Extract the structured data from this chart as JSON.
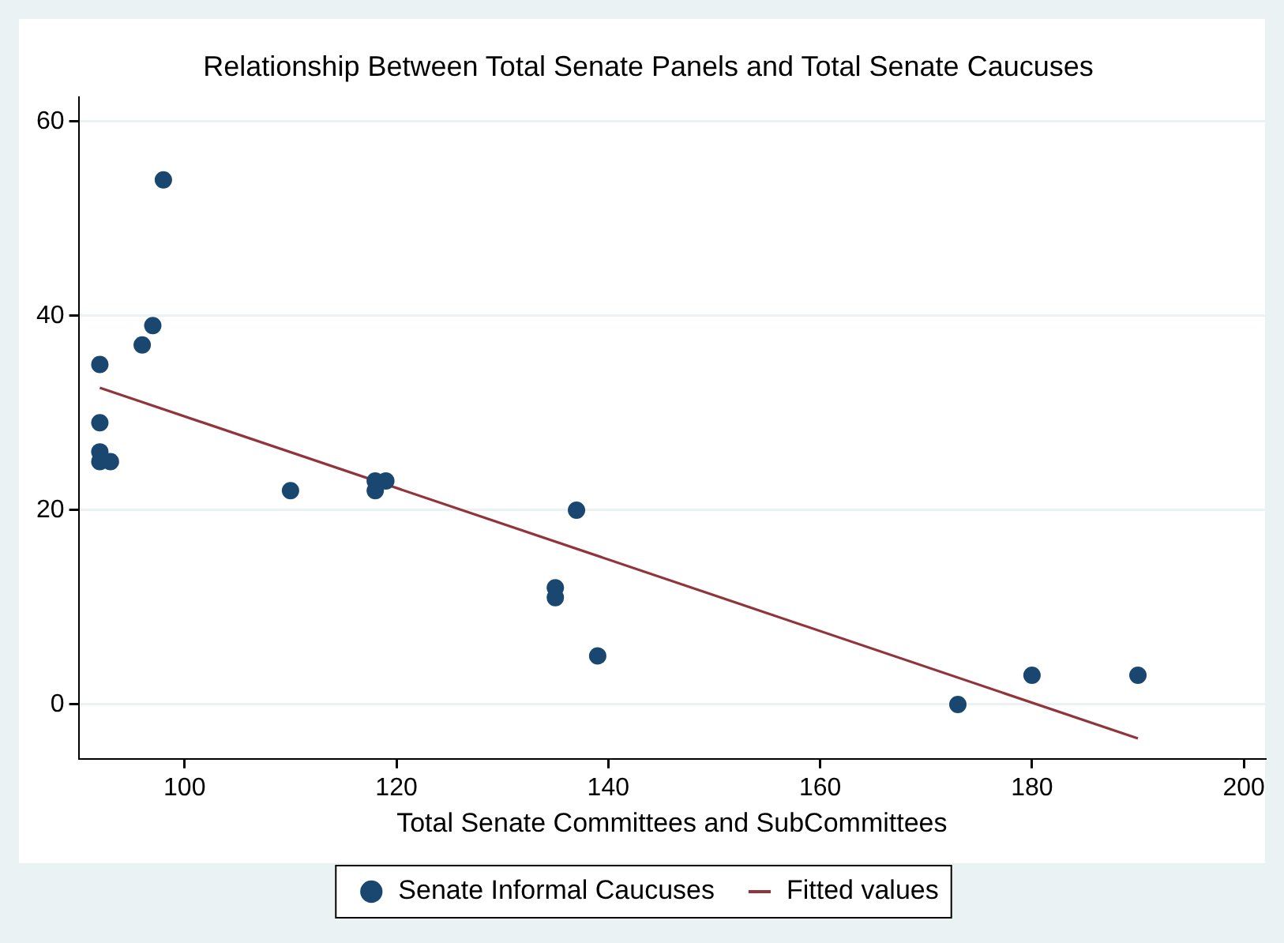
{
  "chart_data": {
    "type": "scatter",
    "title": "Relationship Between Total Senate Panels and Total Senate Caucuses",
    "xlabel": "Total Senate Committees and SubCommittees",
    "xlim": [
      90,
      202
    ],
    "xticks": [
      100,
      120,
      140,
      160,
      180,
      200
    ],
    "ylim": [
      -5.6,
      62.5
    ],
    "yticks": [
      0,
      20,
      40,
      60
    ],
    "grid": "y",
    "legend": "bottom",
    "series": [
      {
        "name": "Senate Informal Caucuses",
        "marker": "circle",
        "color": "#1a476f",
        "x": [
          92,
          92,
          92,
          92,
          93,
          96,
          97,
          98,
          110,
          118,
          119,
          118,
          135,
          135,
          137,
          139,
          173,
          180,
          190
        ],
        "values": [
          35,
          29,
          26,
          25,
          25,
          37,
          39,
          54,
          22,
          23,
          23,
          22,
          12,
          11,
          20,
          5,
          0,
          3,
          3
        ]
      },
      {
        "name": "Fitted values",
        "type": "line",
        "marker": "none",
        "line_style": "solid",
        "color": "#90353b",
        "x": [
          92,
          190
        ],
        "values": [
          32.6,
          -3.5
        ]
      }
    ]
  }
}
